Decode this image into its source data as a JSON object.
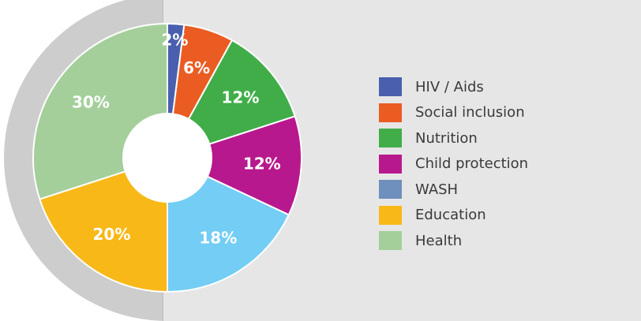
{
  "chart_data": {
    "type": "pie",
    "variant": "donut",
    "title": "",
    "categories": [
      "HIV / Aids",
      "Social inclusion",
      "Nutrition",
      "Child protection",
      "WASH",
      "Education",
      "Health"
    ],
    "values": [
      2,
      6,
      12,
      12,
      18,
      20,
      30
    ],
    "data_labels": [
      "2%",
      "6%",
      "12%",
      "12%",
      "18%",
      "20%",
      "30%"
    ],
    "colors": [
      "#4a5fae",
      "#ea5c22",
      "#41ad49",
      "#b8188e",
      "#73cdf4",
      "#f8b817",
      "#a4cf9b"
    ],
    "legend_position": "right",
    "legend": [
      {
        "label": "HIV / Aids",
        "color": "#4a5fae"
      },
      {
        "label": "Social inclusion",
        "color": "#ea5c22"
      },
      {
        "label": "Nutrition",
        "color": "#41ad49"
      },
      {
        "label": "Child protection",
        "color": "#b8188e"
      },
      {
        "label": "WASH",
        "color": "#6f8fbd"
      },
      {
        "label": "Education",
        "color": "#f8b817"
      },
      {
        "label": "Health",
        "color": "#a4cf9b"
      }
    ]
  },
  "theme": {
    "panel_bg": "#e6e6e6",
    "halo": "#cdcdcd",
    "label_color": "#ffffff",
    "slice_border": "#ffffff"
  }
}
